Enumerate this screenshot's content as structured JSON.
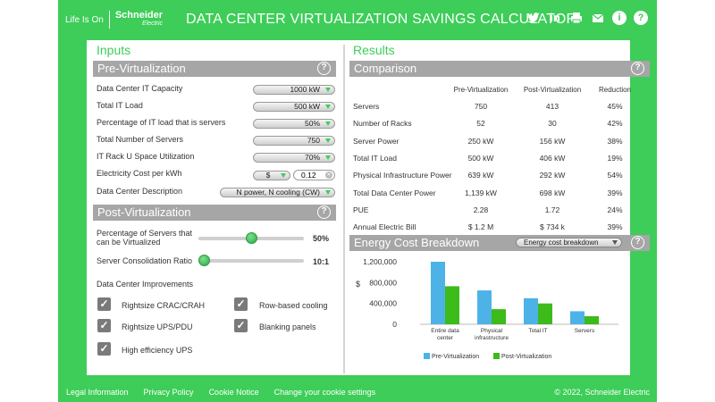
{
  "header": {
    "life_is_on": "Life Is On",
    "brand": "Schneider",
    "brand_sub": "Electric",
    "title": "DATA CENTER VIRTUALIZATION SAVINGS CALCULATOR",
    "icons": [
      "twitter-icon",
      "linkedin-icon",
      "print-icon",
      "email-icon",
      "info-icon",
      "help-icon"
    ]
  },
  "inputs": {
    "title": "Inputs",
    "pre": {
      "title": "Pre-Virtualization",
      "help": "?",
      "fields": [
        {
          "label": "Data Center IT Capacity",
          "value": "1000 kW"
        },
        {
          "label": "Total IT Load",
          "value": "500 kW"
        },
        {
          "label": "Percentage of IT load that is servers",
          "value": "50%"
        },
        {
          "label": "Total Number of Servers",
          "value": "750"
        },
        {
          "label": "IT Rack U Space Utilization",
          "value": "70%"
        },
        {
          "label": "Electricity Cost per kWh",
          "currency": "$",
          "value": "0.12"
        },
        {
          "label": "Data Center Description",
          "value": "N power, N cooling (CW)"
        }
      ]
    },
    "post": {
      "title": "Post-Virtualization",
      "help": "?",
      "slider1": {
        "label_line1": "Percentage of Servers that",
        "label_line2": "can be Virtualized",
        "value": "50%",
        "level": 0.5
      },
      "slider2": {
        "label": "Server Consolidation Ratio",
        "value": "10:1",
        "level": 0.05
      },
      "improvements_label": "Data Center Improvements",
      "checks": [
        {
          "label": "Rightsize CRAC/CRAH",
          "checked": true
        },
        {
          "label": "Row-based cooling",
          "checked": true
        },
        {
          "label": "Rightsize UPS/PDU",
          "checked": true
        },
        {
          "label": "Blanking panels",
          "checked": true
        },
        {
          "label": "High efficiency UPS",
          "checked": true
        }
      ]
    }
  },
  "results": {
    "title": "Results",
    "comparison": {
      "title": "Comparison",
      "help": "?",
      "headers": [
        "Pre-Virtualization",
        "Post-Virtualization",
        "Reduction"
      ],
      "rows": [
        {
          "label": "Servers",
          "pre": "750",
          "post": "413",
          "red": "45%"
        },
        {
          "label": "Number of Racks",
          "pre": "52",
          "post": "30",
          "red": "42%"
        },
        {
          "label": "Server Power",
          "pre": "250 kW",
          "post": "156 kW",
          "red": "38%"
        },
        {
          "label": "Total IT Load",
          "pre": "500 kW",
          "post": "406 kW",
          "red": "19%"
        },
        {
          "label": "Physical Infrastructure Power",
          "pre": "639 kW",
          "post": "292 kW",
          "red": "54%"
        },
        {
          "label": "Total Data Center Power",
          "pre": "1,139 kW",
          "post": "698 kW",
          "red": "39%"
        },
        {
          "label": "PUE",
          "pre": "2.28",
          "post": "1.72",
          "red": "24%"
        },
        {
          "label": "Annual Electric Bill",
          "pre": "$ 1.2 M",
          "post": "$ 734 k",
          "red": "39%"
        }
      ]
    },
    "energy": {
      "title": "Energy Cost Breakdown",
      "help": "?",
      "dropdown": "Energy cost breakdown"
    }
  },
  "chart_data": {
    "type": "bar",
    "categories": [
      [
        "Entire data",
        "center"
      ],
      [
        "Physical",
        "infrastructure"
      ],
      [
        "Total IT"
      ],
      [
        "Servers"
      ]
    ],
    "series": [
      {
        "name": "Pre-Virtualization",
        "color": "#4db3e6",
        "values": [
          1200000,
          650000,
          500000,
          250000
        ]
      },
      {
        "name": "Post-Virtualization",
        "color": "#3dbb1a",
        "values": [
          730000,
          290000,
          400000,
          156000
        ]
      }
    ],
    "yticks": [
      "0",
      "400,000",
      "800,000",
      "1,200,000"
    ],
    "ytick_values": [
      0,
      400000,
      800000,
      1200000
    ],
    "ylabel": "$",
    "ylim": [
      0,
      1200000
    ],
    "legend_position": "bottom"
  },
  "footer": {
    "links": [
      "Legal Information",
      "Privacy Policy",
      "Cookie Notice",
      "Change your cookie settings"
    ],
    "copyright": "© 2022, Schneider Electric"
  }
}
